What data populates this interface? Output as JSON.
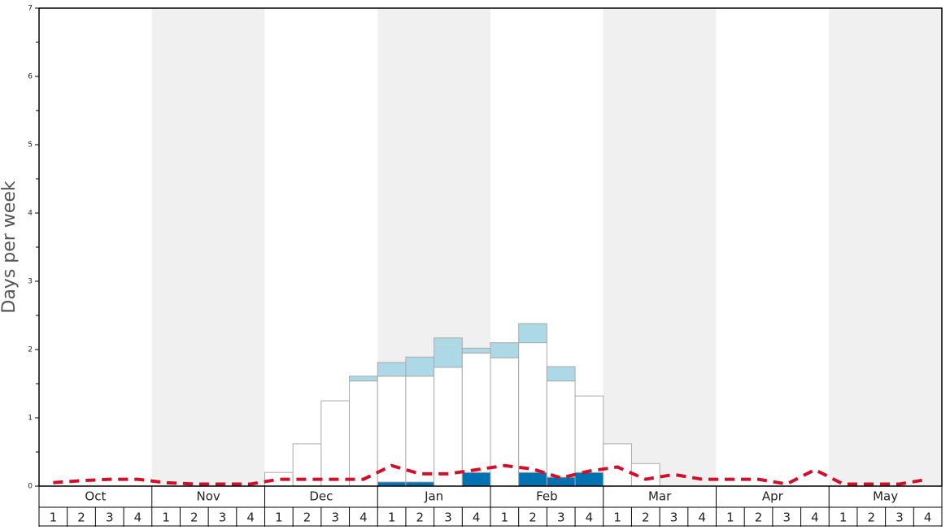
{
  "chart_data": {
    "type": "stacked-bar",
    "y_label": "Days per week",
    "months": [
      "Oct",
      "Nov",
      "Dec",
      "Jan",
      "Feb",
      "Mar",
      "Apr",
      "May"
    ],
    "weeks": [
      "1",
      "2",
      "3",
      "4",
      "1",
      "2",
      "3",
      "4",
      "1",
      "2",
      "3",
      "4",
      "1",
      "2",
      "3",
      "4",
      "1",
      "2",
      "3",
      "4",
      "1",
      "2",
      "3",
      "4",
      "1",
      "2",
      "3",
      "4",
      "1",
      "2",
      "3",
      "4"
    ],
    "ylim": [
      0,
      7
    ],
    "yticks": [
      0,
      1,
      2,
      3,
      4,
      5,
      6,
      7
    ],
    "yminorticks": [
      0.5,
      1.5,
      2.5,
      3.5,
      4.5,
      5.5,
      6.5
    ],
    "shade_color": "#f0f0f0",
    "series": [
      {
        "color": "#0072b2",
        "values": [
          0,
          0,
          0,
          0,
          0,
          0,
          0,
          0,
          0,
          0,
          0,
          0,
          0.06,
          0.06,
          0,
          0.2,
          0,
          0.2,
          0.13,
          0.2,
          0,
          0,
          0,
          0,
          0,
          0,
          0,
          0,
          0,
          0,
          0,
          0
        ]
      },
      {
        "color": "#ffffff",
        "values": [
          0,
          0,
          0,
          0,
          0,
          0,
          0,
          0,
          0.2,
          0.62,
          1.25,
          1.54,
          1.55,
          1.55,
          1.74,
          1.75,
          1.88,
          1.9,
          1.41,
          1.12,
          0.62,
          0.33,
          0,
          0,
          0,
          0,
          0,
          0,
          0,
          0,
          0,
          0
        ]
      },
      {
        "color": "#add8e6",
        "values": [
          0,
          0,
          0,
          0,
          0,
          0,
          0,
          0,
          0,
          0,
          0,
          0.07,
          0.2,
          0.28,
          0.43,
          0.07,
          0.22,
          0.28,
          0.21,
          0,
          0,
          0,
          0,
          0,
          0,
          0,
          0,
          0,
          0,
          0,
          0,
          0
        ]
      }
    ],
    "line": {
      "color": "#d0102a",
      "values": [
        0.05,
        0.08,
        0.1,
        0.1,
        0.05,
        0.03,
        0.03,
        0.03,
        0.1,
        0.1,
        0.1,
        0.1,
        0.3,
        0.18,
        0.18,
        0.24,
        0.3,
        0.25,
        0.12,
        0.22,
        0.28,
        0.1,
        0.17,
        0.1,
        0.1,
        0.1,
        0.03,
        0.24,
        0.03,
        0.03,
        0.03,
        0.1
      ]
    }
  }
}
